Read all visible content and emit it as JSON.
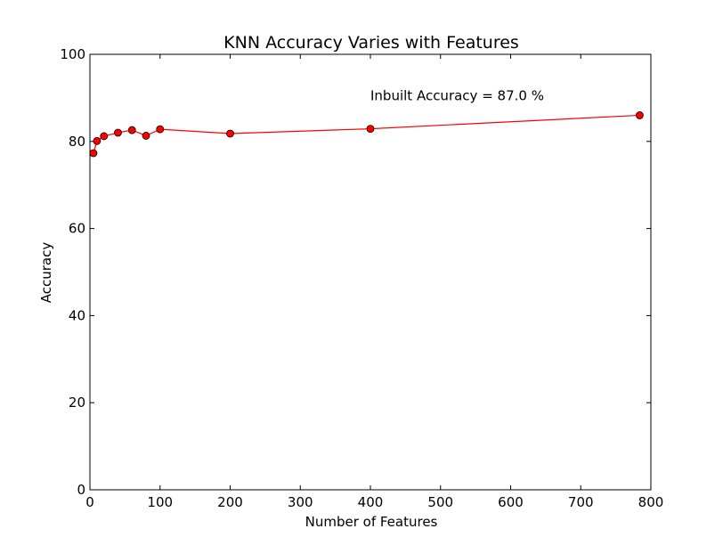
{
  "chart_data": {
    "type": "line",
    "title": "KNN Accuracy Varies with Features",
    "xlabel": "Number of Features",
    "ylabel": "Accuracy",
    "xlim": [
      0,
      800
    ],
    "ylim": [
      0,
      100
    ],
    "xticks": [
      0,
      100,
      200,
      300,
      400,
      500,
      600,
      700,
      800
    ],
    "yticks": [
      0,
      20,
      40,
      60,
      80,
      100
    ],
    "grid": false,
    "series": [
      {
        "color": "#ff0000",
        "marker": "circle",
        "x": [
          5,
          10,
          20,
          40,
          60,
          80,
          100,
          200,
          400,
          784
        ],
        "y": [
          77.3,
          80.1,
          81.2,
          82.0,
          82.6,
          81.3,
          82.8,
          81.8,
          82.9,
          86.0
        ]
      }
    ],
    "annotations": [
      {
        "text": "Inbuilt Accuracy = 87.0 %",
        "x": 400,
        "y": 89.5
      }
    ]
  }
}
